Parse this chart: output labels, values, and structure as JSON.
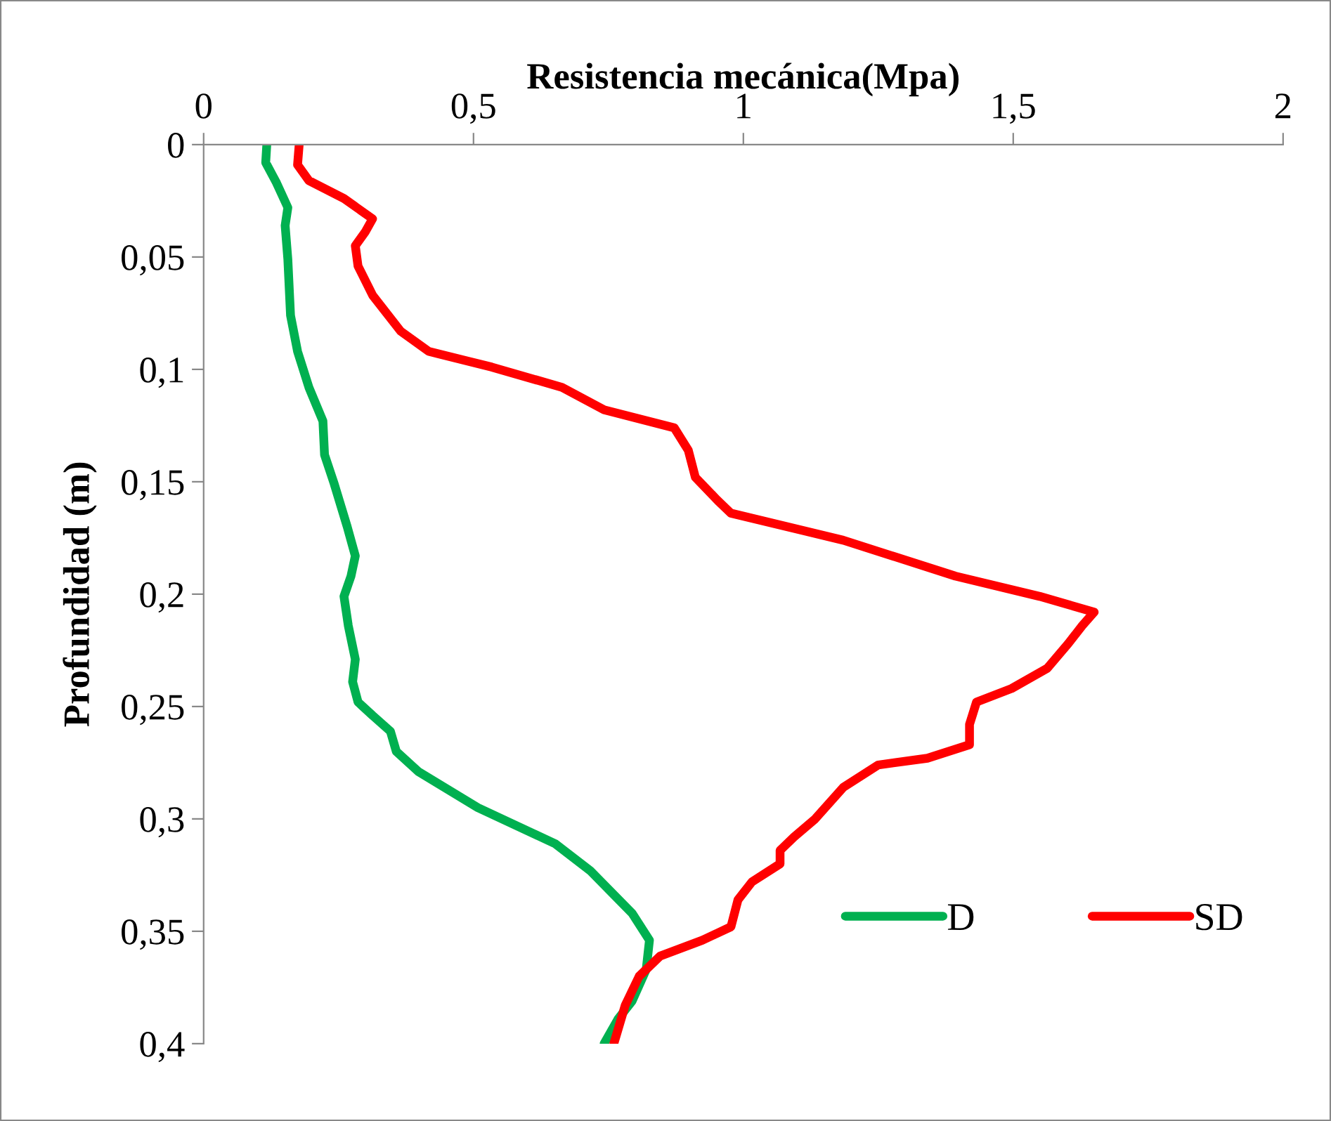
{
  "chart_data": {
    "type": "line",
    "xlabel": "Resistencia mecánica(Mpa)",
    "ylabel": "Profundidad (m)",
    "xlim": [
      0,
      2
    ],
    "xticks": [
      0,
      {
        "value": 0.5,
        "label": "0,5"
      },
      1,
      {
        "value": 1.5,
        "label": "1,5"
      },
      2
    ],
    "ylim": [
      0.4,
      0
    ],
    "yticks": [
      0,
      {
        "value": 0.05,
        "label": "0,05"
      },
      {
        "value": 0.1,
        "label": "0,1"
      },
      {
        "value": 0.15,
        "label": "0,15"
      },
      {
        "value": 0.2,
        "label": "0,2"
      },
      {
        "value": 0.25,
        "label": "0,25"
      },
      {
        "value": 0.3,
        "label": "0,3"
      },
      {
        "value": 0.35,
        "label": "0,35"
      },
      {
        "value": 0.4,
        "label": "0,4"
      }
    ],
    "grid": false,
    "legend": "bottom right",
    "marker": "none",
    "line_style": "solid",
    "series": [
      {
        "name": "D",
        "color": "#00b050",
        "x": [
          0.117,
          0.115,
          0.135,
          0.156,
          0.151,
          0.156,
          0.161,
          0.174,
          0.195,
          0.221,
          0.224,
          0.242,
          0.266,
          0.281,
          0.273,
          0.26,
          0.268,
          0.281,
          0.276,
          0.286,
          0.313,
          0.346,
          0.357,
          0.398,
          0.508,
          0.651,
          0.716,
          0.794,
          0.826,
          0.82,
          0.794,
          0.768,
          0.742
        ],
        "values": [
          0,
          0.008,
          0.017,
          0.028,
          0.036,
          0.051,
          0.076,
          0.092,
          0.108,
          0.123,
          0.138,
          0.151,
          0.17,
          0.183,
          0.192,
          0.201,
          0.214,
          0.229,
          0.239,
          0.248,
          0.254,
          0.261,
          0.27,
          0.279,
          0.295,
          0.311,
          0.323,
          0.342,
          0.354,
          0.367,
          0.381,
          0.389,
          0.4
        ]
      },
      {
        "name": "SD",
        "color": "#ff0000",
        "x": [
          0.177,
          0.174,
          0.195,
          0.26,
          0.313,
          0.299,
          0.281,
          0.286,
          0.313,
          0.365,
          0.417,
          0.534,
          0.664,
          0.742,
          0.872,
          0.898,
          0.911,
          0.951,
          0.977,
          1.185,
          1.393,
          1.549,
          1.65,
          1.628,
          1.602,
          1.563,
          1.497,
          1.432,
          1.419,
          1.419,
          1.341,
          1.25,
          1.185,
          1.133,
          1.094,
          1.068,
          1.068,
          1.016,
          0.99,
          0.977,
          0.924,
          0.846,
          0.807,
          0.781,
          0.76
        ],
        "values": [
          0,
          0.009,
          0.016,
          0.024,
          0.033,
          0.039,
          0.045,
          0.054,
          0.067,
          0.083,
          0.092,
          0.099,
          0.108,
          0.118,
          0.126,
          0.136,
          0.148,
          0.158,
          0.164,
          0.176,
          0.192,
          0.201,
          0.208,
          0.214,
          0.222,
          0.233,
          0.242,
          0.248,
          0.258,
          0.267,
          0.273,
          0.276,
          0.286,
          0.3,
          0.308,
          0.314,
          0.32,
          0.328,
          0.336,
          0.348,
          0.354,
          0.361,
          0.37,
          0.383,
          0.4
        ]
      }
    ]
  }
}
